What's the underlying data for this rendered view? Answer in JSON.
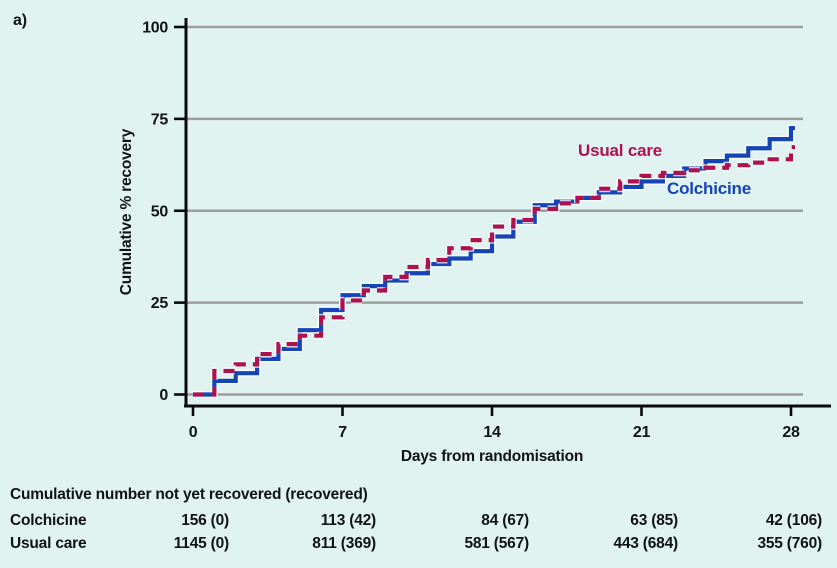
{
  "figure": {
    "panel_label": "a)"
  },
  "chart_data": {
    "type": "line",
    "subtype": "kaplan-meier-step",
    "title": "",
    "xlabel": "Days from randomisation",
    "ylabel": "Cumulative % recovery",
    "xlim": [
      0,
      28
    ],
    "ylim": [
      0,
      100
    ],
    "xticks": [
      0,
      7,
      14,
      21,
      28
    ],
    "yticks": [
      0,
      25,
      50,
      75,
      100
    ],
    "grid": "horizontal",
    "legend_position": "inline-labels",
    "days": [
      0,
      1,
      2,
      3,
      4,
      5,
      6,
      7,
      8,
      9,
      10,
      11,
      12,
      13,
      14,
      15,
      16,
      17,
      18,
      19,
      20,
      21,
      22,
      23,
      24,
      25,
      26,
      27,
      28
    ],
    "series": [
      {
        "name": "Colchicine",
        "style": "solid",
        "color": "#1544b4",
        "values": [
          0,
          3.7,
          5.8,
          9.7,
          12.4,
          17.5,
          23,
          27,
          29.5,
          31,
          33,
          35.5,
          37,
          39,
          43,
          47,
          51.5,
          52.5,
          53.5,
          55,
          56.5,
          58,
          59.5,
          61.5,
          63.5,
          65,
          67,
          69.5,
          72.5
        ]
      },
      {
        "name": "Usual care",
        "style": "dashed",
        "color": "#ae124e",
        "values": [
          0,
          6.4,
          8.2,
          11,
          13.7,
          16,
          21,
          25.6,
          28.3,
          32,
          34.7,
          36.6,
          39.8,
          42,
          45.7,
          47.5,
          50.5,
          52,
          53.5,
          56,
          58,
          59.5,
          60.3,
          61,
          61.7,
          62.4,
          63.1,
          64,
          67.3
        ]
      }
    ]
  },
  "risk_table": {
    "title": "Cumulative number not yet recovered (recovered)",
    "timepoints": [
      0,
      7,
      14,
      21,
      28
    ],
    "rows": [
      {
        "label": "Colchicine",
        "values": [
          "156 (0)",
          "113 (42)",
          "84 (67)",
          "63 (85)",
          "42 (106)"
        ]
      },
      {
        "label": "Usual care",
        "values": [
          "1145 (0)",
          "811 (369)",
          "581 (567)",
          "443 (684)",
          "355 (760)"
        ]
      }
    ]
  },
  "colors": {
    "background": "#e0f3f0",
    "grid": "#9e9e9e",
    "axis": "#0a0a0a",
    "text": "#101314",
    "colchicine": "#1544b4",
    "usual_care": "#ae124e"
  }
}
